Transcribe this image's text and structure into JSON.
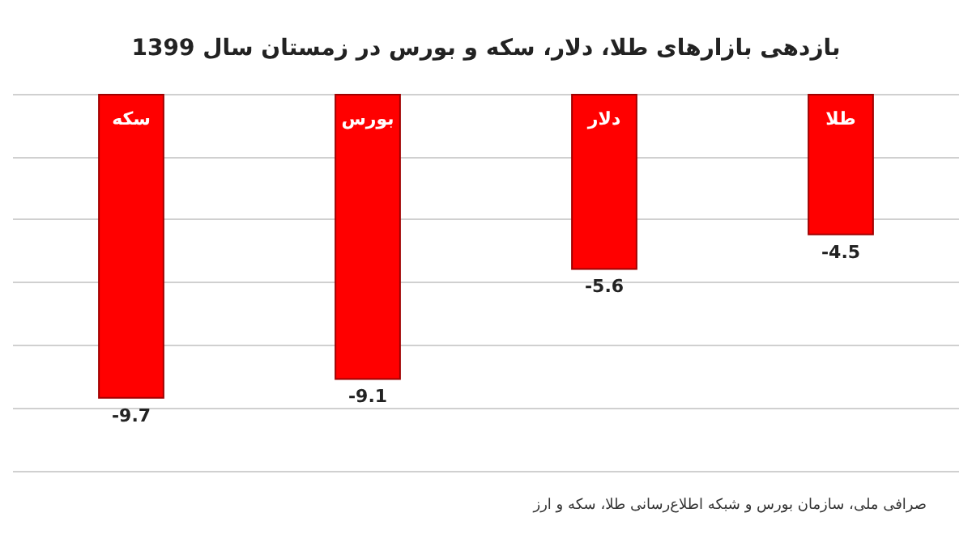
{
  "chart_data": {
    "type": "bar",
    "title": "بازدهی بازارهای طلا، دلار، سکه و بورس در زمستان سال 1399",
    "categories": [
      "سکه",
      "بورس",
      "دلار",
      "طلا"
    ],
    "values": [
      -9.7,
      -9.1,
      -5.6,
      -4.5
    ],
    "color": "#ff0000",
    "ylim": [
      -12,
      0
    ],
    "yticks": [
      {
        "value": -12,
        "label": null
      },
      {
        "value": -10,
        "label": null
      },
      {
        "value": -8,
        "label": null
      },
      {
        "value": -6,
        "label": null
      },
      {
        "value": -4,
        "label": null
      },
      {
        "value": -2,
        "label": null
      },
      {
        "value": 0,
        "label": null
      }
    ],
    "grid": "y",
    "tick_labels": "x",
    "data_labels": true,
    "annotations": [
      "صرافی ملی، سازمان بورس و شبکه اطلاع‌رسانی طلا، سکه و ارز"
    ]
  }
}
